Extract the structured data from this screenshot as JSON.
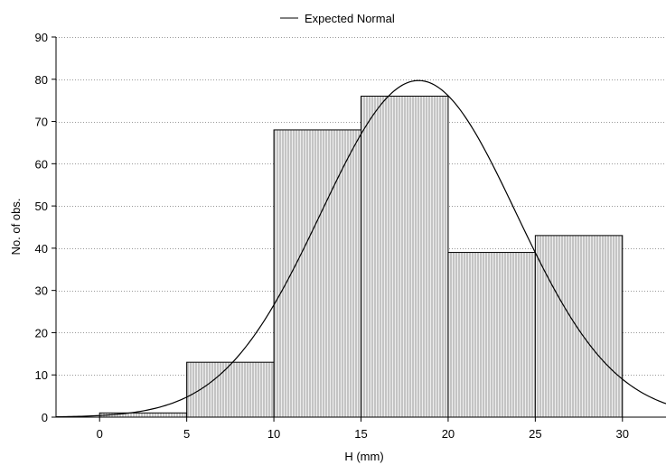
{
  "chart_data": {
    "type": "bar",
    "subtype": "histogram",
    "bins": [
      {
        "from": 0,
        "to": 5,
        "count": 1
      },
      {
        "from": 5,
        "to": 10,
        "count": 13
      },
      {
        "from": 10,
        "to": 15,
        "count": 68
      },
      {
        "from": 15,
        "to": 20,
        "count": 76
      },
      {
        "from": 20,
        "to": 25,
        "count": 39
      },
      {
        "from": 25,
        "to": 30,
        "count": 43
      }
    ],
    "overlay": {
      "name": "Expected Normal",
      "type": "line",
      "mean": 18.3,
      "peak": 79.7,
      "sd": 5.6
    },
    "xlabel": "H (mm)",
    "ylabel": "No. of obs.",
    "xlim": [
      -2.5,
      32.5
    ],
    "ylim": [
      0,
      90
    ],
    "xticks": [
      "0",
      "5",
      "10",
      "15",
      "20",
      "25",
      "30"
    ],
    "yticks": [
      "0",
      "10",
      "20",
      "30",
      "40",
      "50",
      "60",
      "70",
      "80",
      "90"
    ],
    "grid": "horizontal-dotted",
    "legend": "top-center",
    "colors": {
      "bar_fill": "#d4d4d4",
      "bar_stroke": "#000000",
      "line": "#000000",
      "grid": "#999999"
    }
  }
}
